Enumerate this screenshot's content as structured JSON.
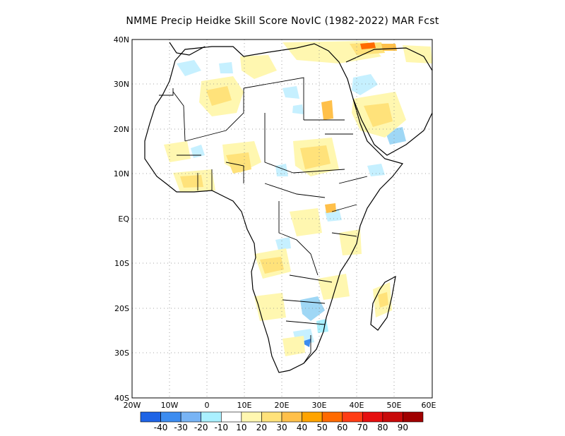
{
  "title": "NMME Precip Heidke Skill Score NovIC (1982-2022) MAR Fcst",
  "map": {
    "region": "Africa",
    "lon_range": [
      -20,
      60
    ],
    "lat_range": [
      -40,
      40
    ],
    "lon_ticks": [
      "20W",
      "10W",
      "0",
      "10E",
      "20E",
      "30E",
      "40E",
      "50E",
      "60E"
    ],
    "lat_ticks": [
      "40N",
      "30N",
      "20N",
      "10N",
      "EQ",
      "10S",
      "20S",
      "30S",
      "40S"
    ],
    "gridlines": "dotted",
    "colors": {
      "land_outline": "#000000",
      "skill_10": "#fff7b0",
      "skill_20": "#ffe27a",
      "skill_neg10": "#c6f0ff",
      "skill_neg20": "#9fd7f5"
    }
  },
  "colorbar": {
    "labels": [
      "-40",
      "-30",
      "-20",
      "-10",
      "10",
      "20",
      "30",
      "40",
      "50",
      "60",
      "70",
      "80",
      "90"
    ],
    "colors": [
      "#1e64e6",
      "#3c8cf0",
      "#78b4f5",
      "#aaf0ff",
      "#ffffff",
      "#fff7b0",
      "#ffe27a",
      "#ffc04a",
      "#ffa400",
      "#ff6a00",
      "#ff3c14",
      "#e60f0f",
      "#c80a0a",
      "#a00000"
    ]
  }
}
